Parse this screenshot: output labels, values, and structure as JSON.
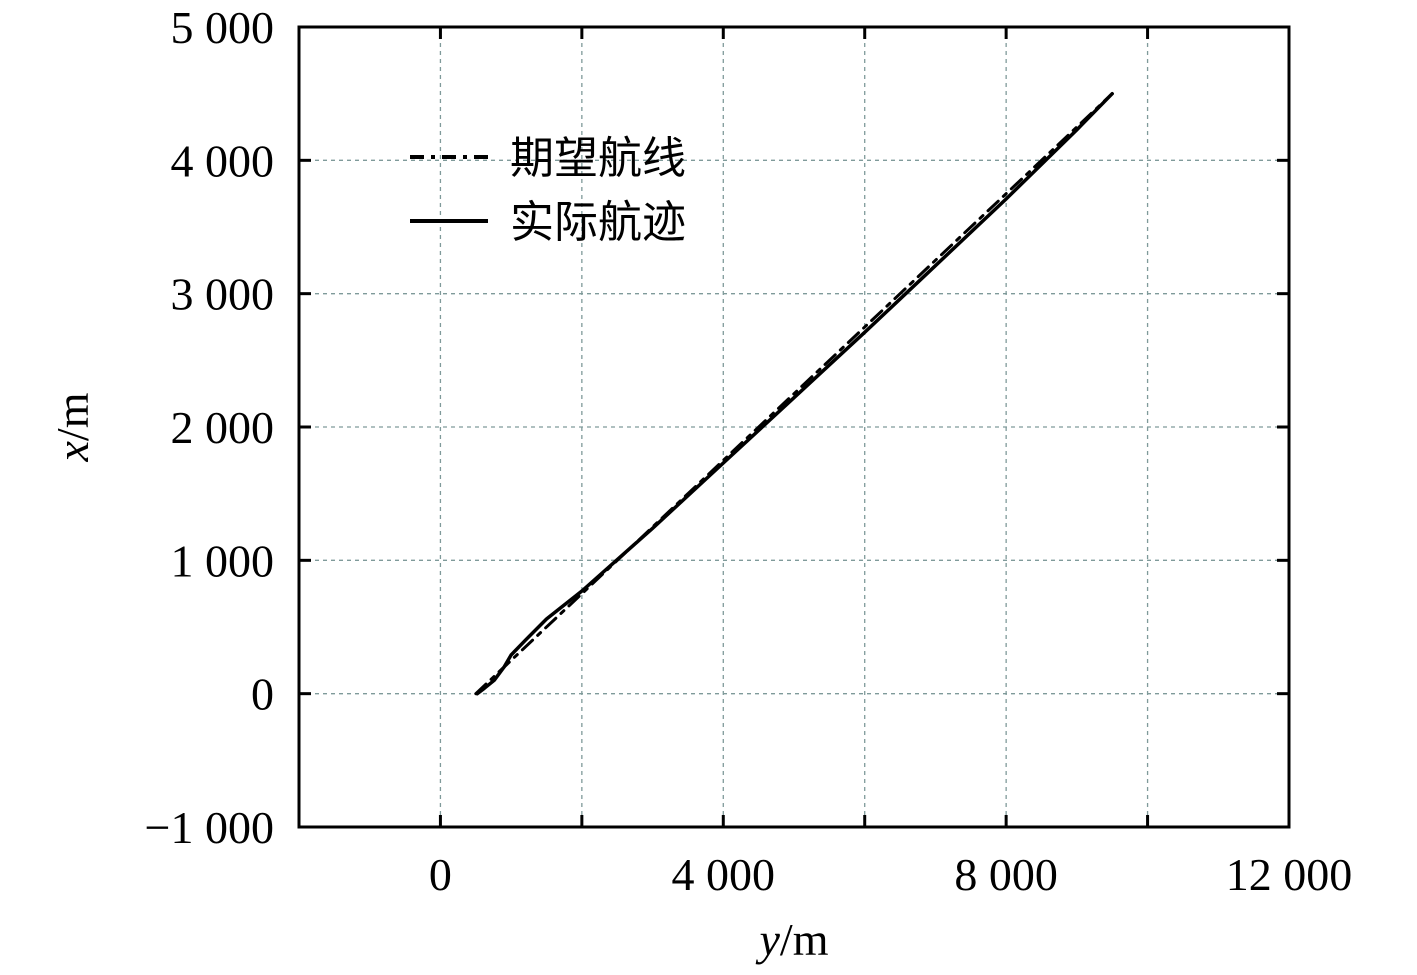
{
  "chart_data": {
    "type": "line",
    "xlabel": {
      "var": "y",
      "unit": "/m"
    },
    "ylabel": {
      "var": "x",
      "unit": "/m"
    },
    "xlim": [
      -2000,
      12000
    ],
    "ylim": [
      -1000,
      5000
    ],
    "xticks": [
      {
        "value": 0,
        "label": "0"
      },
      {
        "value": 4000,
        "label": "4 000"
      },
      {
        "value": 8000,
        "label": "8 000"
      },
      {
        "value": 12000,
        "label": "12 000"
      }
    ],
    "xticks_unlabeled": [
      -2000,
      2000,
      6000,
      10000
    ],
    "yticks": [
      {
        "value": -1000,
        "label": "−1 000"
      },
      {
        "value": 0,
        "label": "0"
      },
      {
        "value": 1000,
        "label": "1 000"
      },
      {
        "value": 2000,
        "label": "2 000"
      },
      {
        "value": 3000,
        "label": "3 000"
      },
      {
        "value": 4000,
        "label": "4 000"
      },
      {
        "value": 5000,
        "label": "5 000"
      }
    ],
    "grid": true,
    "legend_position": "top-left",
    "series": [
      {
        "name": "期望航线",
        "style": "dashdot",
        "color": "#000000",
        "x": [
          500,
          9500
        ],
        "y": [
          0,
          4500
        ]
      },
      {
        "name": "实际航迹",
        "style": "solid",
        "color": "#000000",
        "x": [
          520,
          620,
          760,
          900,
          1000,
          1200,
          1500,
          2000,
          3000,
          4000,
          5000,
          6000,
          7000,
          8000,
          9000,
          9500
        ],
        "y": [
          0,
          40,
          100,
          200,
          290,
          400,
          560,
          770,
          1240,
          1730,
          2220,
          2710,
          3210,
          3710,
          4230,
          4500
        ]
      }
    ]
  }
}
